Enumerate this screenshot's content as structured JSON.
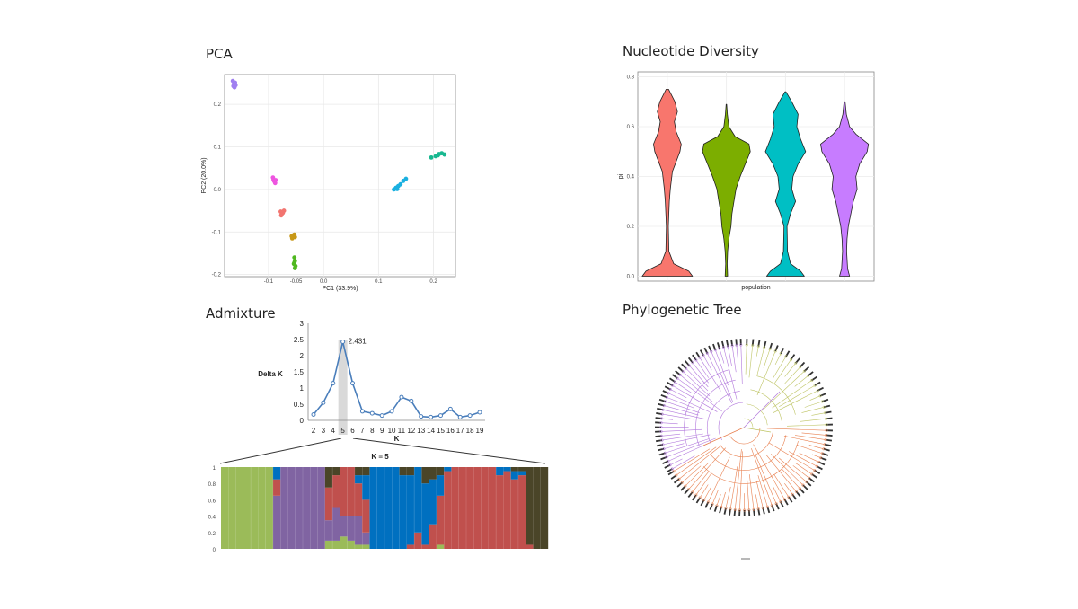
{
  "titles": {
    "pca": "PCA",
    "diversity": "Nucleotide Diversity",
    "admixture": "Admixture",
    "tree": "Phylogenetic Tree"
  },
  "chart_data": [
    {
      "id": "pca",
      "type": "scatter",
      "title": "PCA",
      "xlabel": "PC1 (33.9%)",
      "ylabel": "PC2 (20.0%)",
      "xlim": [
        -0.18,
        0.24
      ],
      "ylim": [
        -0.205,
        0.27
      ],
      "xticks": [
        -0.1,
        -0.05,
        0.0,
        0.1,
        0.2
      ],
      "xtick_labels": [
        "-0.1",
        "-0.05",
        "0.0",
        "0.1",
        "0.2"
      ],
      "yticks": [
        0.2,
        0.1,
        0.0,
        -0.1,
        -0.2
      ],
      "ytick_labels": [
        "0.2",
        "0.1",
        "0.0",
        "-0.1",
        "-0.2"
      ],
      "grid": true,
      "series": [
        {
          "color": "#a07ff0",
          "points": [
            [
              -0.165,
              0.255
            ],
            [
              -0.163,
              0.248
            ],
            [
              -0.162,
              0.24
            ],
            [
              -0.164,
              0.243
            ],
            [
              -0.16,
              0.245
            ],
            [
              -0.161,
              0.251
            ]
          ]
        },
        {
          "color": "#ee55e0",
          "points": [
            [
              -0.092,
              0.028
            ],
            [
              -0.09,
              0.02
            ],
            [
              -0.088,
              0.015
            ],
            [
              -0.091,
              0.023
            ],
            [
              -0.087,
              0.022
            ]
          ]
        },
        {
          "color": "#f27570",
          "points": [
            [
              -0.078,
              -0.052
            ],
            [
              -0.076,
              -0.058
            ],
            [
              -0.074,
              -0.055
            ],
            [
              -0.077,
              -0.061
            ],
            [
              -0.072,
              -0.05
            ]
          ]
        },
        {
          "color": "#c89818",
          "points": [
            [
              -0.058,
              -0.11
            ],
            [
              -0.055,
              -0.108
            ],
            [
              -0.052,
              -0.112
            ],
            [
              -0.057,
              -0.115
            ],
            [
              -0.053,
              -0.106
            ]
          ]
        },
        {
          "color": "#50b820",
          "points": [
            [
              -0.053,
              -0.16
            ],
            [
              -0.052,
              -0.168
            ],
            [
              -0.054,
              -0.175
            ],
            [
              -0.051,
              -0.18
            ],
            [
              -0.053,
              -0.172
            ],
            [
              -0.052,
              -0.185
            ]
          ]
        },
        {
          "color": "#1ab0e0",
          "points": [
            [
              0.128,
              0.0
            ],
            [
              0.132,
              0.004
            ],
            [
              0.136,
              0.008
            ],
            [
              0.14,
              0.012
            ],
            [
              0.145,
              0.02
            ],
            [
              0.15,
              0.025
            ],
            [
              0.134,
              0.001
            ]
          ]
        },
        {
          "color": "#18b890",
          "points": [
            [
              0.196,
              0.075
            ],
            [
              0.204,
              0.078
            ],
            [
              0.21,
              0.083
            ],
            [
              0.215,
              0.085
            ],
            [
              0.22,
              0.082
            ],
            [
              0.208,
              0.08
            ]
          ]
        }
      ]
    },
    {
      "id": "diversity",
      "type": "violin",
      "title": "Nucleotide Diversity",
      "xlabel": "population",
      "ylabel": "pi",
      "ylim": [
        -0.02,
        0.82
      ],
      "yticks": [
        0.0,
        0.2,
        0.4,
        0.6,
        0.8
      ],
      "ytick_labels": [
        "0.0",
        "0.2",
        "0.4",
        "0.6",
        "0.8"
      ],
      "grid": true,
      "violins": [
        {
          "color": "#f8766d",
          "range": [
            0.0,
            0.75
          ],
          "profile": [
            [
              0.0,
              1.0
            ],
            [
              0.02,
              0.85
            ],
            [
              0.05,
              0.25
            ],
            [
              0.1,
              0.06
            ],
            [
              0.2,
              0.04
            ],
            [
              0.3,
              0.08
            ],
            [
              0.35,
              0.12
            ],
            [
              0.42,
              0.2
            ],
            [
              0.5,
              0.5
            ],
            [
              0.53,
              0.55
            ],
            [
              0.58,
              0.35
            ],
            [
              0.62,
              0.28
            ],
            [
              0.66,
              0.4
            ],
            [
              0.7,
              0.3
            ],
            [
              0.75,
              0.05
            ]
          ]
        },
        {
          "color": "#7cae00",
          "range": [
            0.0,
            0.69
          ],
          "profile": [
            [
              0.0,
              0.05
            ],
            [
              0.05,
              0.03
            ],
            [
              0.1,
              0.05
            ],
            [
              0.15,
              0.1
            ],
            [
              0.2,
              0.18
            ],
            [
              0.25,
              0.22
            ],
            [
              0.3,
              0.3
            ],
            [
              0.35,
              0.38
            ],
            [
              0.4,
              0.55
            ],
            [
              0.45,
              0.75
            ],
            [
              0.5,
              0.95
            ],
            [
              0.53,
              0.9
            ],
            [
              0.56,
              0.35
            ],
            [
              0.6,
              0.1
            ],
            [
              0.65,
              0.04
            ],
            [
              0.69,
              0.01
            ]
          ]
        },
        {
          "color": "#00bfc4",
          "range": [
            0.0,
            0.74
          ],
          "profile": [
            [
              0.0,
              0.75
            ],
            [
              0.02,
              0.6
            ],
            [
              0.05,
              0.2
            ],
            [
              0.1,
              0.08
            ],
            [
              0.2,
              0.06
            ],
            [
              0.25,
              0.2
            ],
            [
              0.3,
              0.4
            ],
            [
              0.35,
              0.25
            ],
            [
              0.4,
              0.3
            ],
            [
              0.45,
              0.5
            ],
            [
              0.5,
              0.8
            ],
            [
              0.55,
              0.6
            ],
            [
              0.6,
              0.45
            ],
            [
              0.65,
              0.5
            ],
            [
              0.7,
              0.25
            ],
            [
              0.74,
              0.02
            ]
          ]
        },
        {
          "color": "#c77cff",
          "range": [
            0.0,
            0.7
          ],
          "profile": [
            [
              0.0,
              0.2
            ],
            [
              0.03,
              0.12
            ],
            [
              0.1,
              0.08
            ],
            [
              0.15,
              0.1
            ],
            [
              0.2,
              0.15
            ],
            [
              0.25,
              0.25
            ],
            [
              0.3,
              0.35
            ],
            [
              0.35,
              0.5
            ],
            [
              0.4,
              0.45
            ],
            [
              0.45,
              0.6
            ],
            [
              0.5,
              0.9
            ],
            [
              0.53,
              0.95
            ],
            [
              0.57,
              0.45
            ],
            [
              0.6,
              0.2
            ],
            [
              0.65,
              0.07
            ],
            [
              0.7,
              0.02
            ]
          ]
        }
      ]
    },
    {
      "id": "deltaK",
      "type": "line",
      "ylabel": "Delta K",
      "xlabel": "K",
      "x": [
        2,
        3,
        4,
        5,
        6,
        7,
        8,
        9,
        10,
        11,
        12,
        13,
        14,
        15,
        16,
        17,
        18,
        19
      ],
      "values": [
        0.18,
        0.55,
        1.15,
        2.431,
        1.15,
        0.28,
        0.22,
        0.15,
        0.28,
        0.72,
        0.6,
        0.12,
        0.1,
        0.15,
        0.35,
        0.1,
        0.15,
        0.25
      ],
      "ylim": [
        0,
        3
      ],
      "yticks": [
        0,
        0.5,
        1,
        1.5,
        2,
        2.5,
        3
      ],
      "ytick_labels": [
        "0",
        "0.5",
        "1",
        "1.5",
        "2",
        "2.5",
        "3"
      ],
      "annotation": {
        "x": 5,
        "text": "2.431"
      }
    },
    {
      "id": "admixture",
      "type": "bar",
      "stacked": true,
      "title": "K = 5",
      "ylim": [
        0,
        1
      ],
      "yticks": [
        0,
        0.2,
        0.4,
        0.6,
        0.8,
        1
      ],
      "ytick_labels": [
        "0",
        "0.2",
        "0.4",
        "0.6",
        "0.8",
        "1"
      ],
      "colors": [
        "#9bbb59",
        "#8064a2",
        "#c0504d",
        "#0070c0",
        "#4a4528"
      ],
      "bars": [
        [
          1,
          0,
          0,
          0,
          0
        ],
        [
          1,
          0,
          0,
          0,
          0
        ],
        [
          1,
          0,
          0,
          0,
          0
        ],
        [
          1,
          0,
          0,
          0,
          0
        ],
        [
          1,
          0,
          0,
          0,
          0
        ],
        [
          1,
          0,
          0,
          0,
          0
        ],
        [
          1,
          0,
          0,
          0,
          0
        ],
        [
          0,
          0.65,
          0.2,
          0.15,
          0
        ],
        [
          0,
          1,
          0,
          0,
          0
        ],
        [
          0,
          1,
          0,
          0,
          0
        ],
        [
          0,
          1,
          0,
          0,
          0
        ],
        [
          0,
          1,
          0,
          0,
          0
        ],
        [
          0,
          1,
          0,
          0,
          0
        ],
        [
          0,
          1,
          0,
          0,
          0
        ],
        [
          0.1,
          0.25,
          0.4,
          0,
          0.25
        ],
        [
          0.1,
          0.4,
          0.4,
          0,
          0.1
        ],
        [
          0.15,
          0.25,
          0.6,
          0,
          0
        ],
        [
          0.1,
          0.3,
          0.6,
          0,
          0
        ],
        [
          0.05,
          0.35,
          0.4,
          0.1,
          0.1
        ],
        [
          0.05,
          0.15,
          0.4,
          0.3,
          0.1
        ],
        [
          0,
          0,
          0,
          1,
          0
        ],
        [
          0,
          0,
          0,
          1,
          0
        ],
        [
          0,
          0,
          0,
          1,
          0
        ],
        [
          0,
          0,
          0,
          1,
          0
        ],
        [
          0,
          0,
          0,
          0.9,
          0.1
        ],
        [
          0,
          0,
          0.05,
          0.85,
          0.1
        ],
        [
          0,
          0,
          0.2,
          0.8,
          0
        ],
        [
          0,
          0,
          0.05,
          0.75,
          0.2
        ],
        [
          0,
          0,
          0.3,
          0.55,
          0.15
        ],
        [
          0.05,
          0,
          0.6,
          0.25,
          0.1
        ],
        [
          0,
          0,
          0.95,
          0.05,
          0
        ],
        [
          0,
          0,
          1,
          0,
          0
        ],
        [
          0,
          0,
          1,
          0,
          0
        ],
        [
          0,
          0,
          1,
          0,
          0
        ],
        [
          0,
          0,
          1,
          0,
          0
        ],
        [
          0,
          0,
          1,
          0,
          0
        ],
        [
          0,
          0,
          1,
          0,
          0
        ],
        [
          0,
          0,
          0.9,
          0.1,
          0
        ],
        [
          0,
          0,
          0.95,
          0.05,
          0
        ],
        [
          0,
          0,
          0.85,
          0.1,
          0.05
        ],
        [
          0,
          0,
          0.9,
          0.05,
          0.05
        ],
        [
          0,
          0,
          0.05,
          0,
          0.95
        ],
        [
          0,
          0,
          0,
          0,
          1
        ],
        [
          0,
          0,
          0,
          0,
          1
        ]
      ]
    }
  ]
}
